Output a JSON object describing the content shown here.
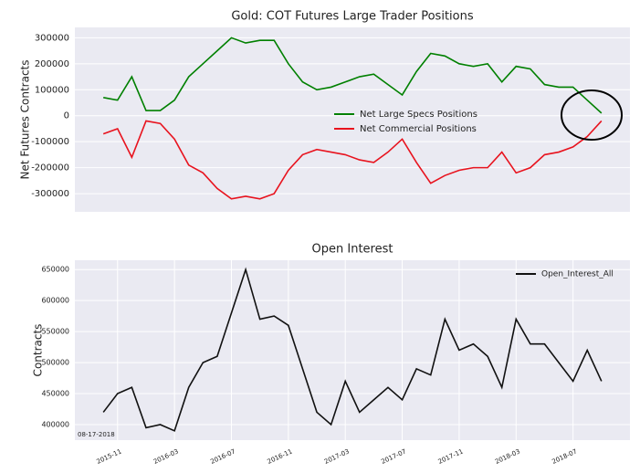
{
  "chart_data": [
    {
      "type": "line",
      "title": "Gold: COT Futures Large Trader Positions",
      "y_label": "Net Futures Contracts",
      "x": [
        "2015-10",
        "2015-11",
        "2015-12",
        "2016-01",
        "2016-02",
        "2016-03",
        "2016-04",
        "2016-05",
        "2016-06",
        "2016-07",
        "2016-08",
        "2016-09",
        "2016-10",
        "2016-11",
        "2016-12",
        "2017-01",
        "2017-02",
        "2017-03",
        "2017-04",
        "2017-05",
        "2017-06",
        "2017-07",
        "2017-08",
        "2017-09",
        "2017-10",
        "2017-11",
        "2017-12",
        "2018-01",
        "2018-02",
        "2018-03",
        "2018-04",
        "2018-05",
        "2018-06",
        "2018-07",
        "2018-08",
        "2018-09"
      ],
      "series": [
        {
          "name": "Net Large Specs Positions",
          "color": "#008000",
          "values": [
            70000,
            60000,
            150000,
            20000,
            20000,
            60000,
            150000,
            200000,
            250000,
            300000,
            280000,
            290000,
            290000,
            200000,
            130000,
            100000,
            110000,
            130000,
            150000,
            160000,
            120000,
            80000,
            170000,
            240000,
            230000,
            200000,
            190000,
            200000,
            130000,
            190000,
            180000,
            120000,
            110000,
            110000,
            60000,
            10000
          ]
        },
        {
          "name": "Net Commercial Positions",
          "color": "#e8131e",
          "values": [
            -70000,
            -50000,
            -160000,
            -20000,
            -30000,
            -90000,
            -190000,
            -220000,
            -280000,
            -320000,
            -310000,
            -320000,
            -300000,
            -210000,
            -150000,
            -130000,
            -140000,
            -150000,
            -170000,
            -180000,
            -140000,
            -90000,
            -180000,
            -260000,
            -230000,
            -210000,
            -200000,
            -200000,
            -140000,
            -220000,
            -200000,
            -150000,
            -140000,
            -120000,
            -80000,
            -20000
          ]
        }
      ],
      "xlim": [
        "2015-08",
        "2018-11"
      ],
      "ylim": [
        -370000,
        340000
      ],
      "yticks": [
        -300000,
        -200000,
        -100000,
        0,
        100000,
        200000,
        300000
      ],
      "grid": true,
      "legend": "center"
    },
    {
      "type": "line",
      "title": "Open Interest",
      "y_label": "Contracts",
      "annotation": "08-17-2018",
      "x": [
        "2015-10",
        "2015-11",
        "2015-12",
        "2016-01",
        "2016-02",
        "2016-03",
        "2016-04",
        "2016-05",
        "2016-06",
        "2016-07",
        "2016-08",
        "2016-09",
        "2016-10",
        "2016-11",
        "2016-12",
        "2017-01",
        "2017-02",
        "2017-03",
        "2017-04",
        "2017-05",
        "2017-06",
        "2017-07",
        "2017-08",
        "2017-09",
        "2017-10",
        "2017-11",
        "2017-12",
        "2018-01",
        "2018-02",
        "2018-03",
        "2018-04",
        "2018-05",
        "2018-06",
        "2018-07",
        "2018-08",
        "2018-09"
      ],
      "series": [
        {
          "name": "Open_Interest_All",
          "color": "#111111",
          "values": [
            420000,
            450000,
            460000,
            395000,
            400000,
            390000,
            460000,
            500000,
            510000,
            580000,
            650000,
            570000,
            575000,
            560000,
            490000,
            420000,
            400000,
            470000,
            420000,
            440000,
            460000,
            440000,
            490000,
            480000,
            570000,
            520000,
            530000,
            510000,
            460000,
            570000,
            530000,
            530000,
            500000,
            470000,
            520000,
            470000
          ]
        }
      ],
      "xlim": [
        "2015-08",
        "2018-11"
      ],
      "ylim": [
        375000,
        665000
      ],
      "xticks": [
        "2015-11",
        "2016-03",
        "2016-07",
        "2016-11",
        "2017-03",
        "2017-07",
        "2017-11",
        "2018-03",
        "2018-07"
      ],
      "yticks": [
        400000,
        450000,
        500000,
        550000,
        600000,
        650000
      ],
      "grid": true,
      "legend": "upper right"
    }
  ]
}
